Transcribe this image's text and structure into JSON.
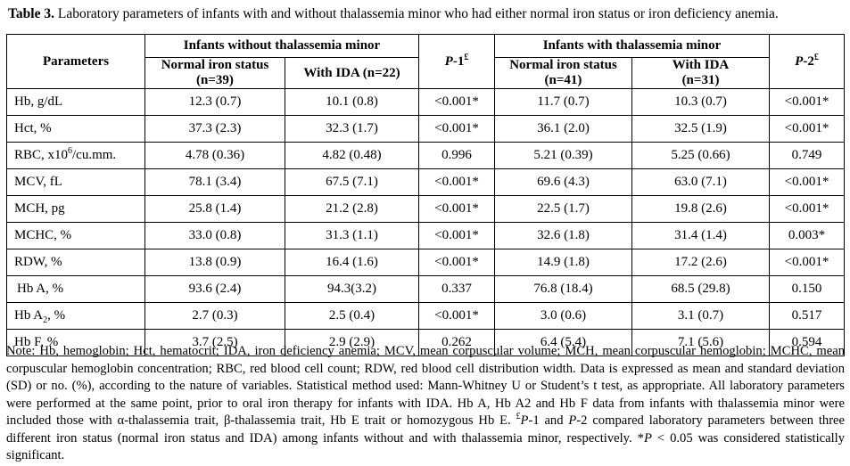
{
  "caption": {
    "label": "Table 3.",
    "text": "Laboratory parameters of infants with and without thalassemia minor who had either normal iron status or iron deficiency anemia."
  },
  "header": {
    "parameters": "Parameters",
    "group_without": "Infants without thalassemia minor",
    "group_with": "Infants with thalassemia minor",
    "p1_main": "P",
    "p1_rest": "-1",
    "p1_sup": "£",
    "p2_main": "P",
    "p2_rest": "-2",
    "p2_sup": "£",
    "without_normal": "Normal iron status",
    "without_normal_n": "(n=39)",
    "without_ida": "With IDA (n=22)",
    "with_normal": "Normal iron status",
    "with_normal_n": "(n=41)",
    "with_ida": "With IDA",
    "with_ida_n": "(n=31)"
  },
  "rows": [
    {
      "label": "Hb, g/dL",
      "c1": "12.3 (0.7)",
      "c2": "10.1 (0.8)",
      "p1": "<0.001*",
      "c3": "11.7 (0.7)",
      "c4": "10.3 (0.7)",
      "p2": "<0.001*"
    },
    {
      "label": "Hct, %",
      "c1": "37.3 (2.3)",
      "c2": "32.3 (1.7)",
      "p1": "<0.001*",
      "c3": "36.1 (2.0)",
      "c4": "32.5 (1.9)",
      "p2": "<0.001*"
    },
    {
      "label_pre": "RBC, x10",
      "label_sup": "6",
      "label_post": "/cu.mm.",
      "c1": "4.78 (0.36)",
      "c2": "4.82 (0.48)",
      "p1": "0.996",
      "c3": "5.21 (0.39)",
      "c4": "5.25 (0.66)",
      "p2": "0.749"
    },
    {
      "label": "MCV, fL",
      "c1": "78.1 (3.4)",
      "c2": "67.5 (7.1)",
      "p1": "<0.001*",
      "c3": "69.6 (4.3)",
      "c4": "63.0 (7.1)",
      "p2": "<0.001*"
    },
    {
      "label": "MCH, pg",
      "c1": "25.8 (1.4)",
      "c2": "21.2 (2.8)",
      "p1": "<0.001*",
      "c3": "22.5 (1.7)",
      "c4": "19.8 (2.6)",
      "p2": "<0.001*"
    },
    {
      "label": "MCHC, %",
      "c1": "33.0 (0.8)",
      "c2": "31.3 (1.1)",
      "p1": "<0.001*",
      "c3": "32.6 (1.8)",
      "c4": "31.4 (1.4)",
      "p2": "0.003*"
    },
    {
      "label": "RDW, %",
      "c1": "13.8 (0.9)",
      "c2": "16.4 (1.6)",
      "p1": "<0.001*",
      "c3": "14.9 (1.8)",
      "c4": "17.2 (2.6)",
      "p2": "<0.001*"
    },
    {
      "label": "Hb A, %",
      "c1": "93.6 (2.4)",
      "c2": "94.3(3.2)",
      "p1": "0.337",
      "c3": "76.8 (18.4)",
      "c4": "68.5 (29.8)",
      "p2": "0.150"
    },
    {
      "label_pre": "Hb A",
      "label_sub": "2",
      "label_post": ", %",
      "c1": "2.7 (0.3)",
      "c2": "2.5 (0.4)",
      "p1": "<0.001*",
      "c3": "3.0 (0.6)",
      "c4": "3.1 (0.7)",
      "p2": "0.517"
    },
    {
      "label": "Hb F, %",
      "c1": "3.7 (2.5)",
      "c2": "2.9 (2.9)",
      "p1": "0.262",
      "c3": "6.4 (5.4)",
      "c4": "7.1 (5.6)",
      "p2": "0.594"
    }
  ],
  "note": {
    "s1": "Note: Hb, hemoglobin; Hct, hematocrit; IDA, iron deficiency anemia; MCV, mean corpuscular volume; MCH, mean corpuscular hemoglobin; MCHC, mean corpuscular hemoglobin concentration; RBC, red blood cell count; RDW, red blood cell distribution width. Data is expressed as mean and standard deviation (SD) or no. (%), according to the nature of variables. Statistical method used: Mann-Whitney U or Student’s t test, as appropriate. All laboratory parameters were performed at the same point, prior to oral iron therapy for infants with IDA. Hb A, Hb A2 and Hb F data from infants with thalassemia minor were included those with α-thalassemia trait, β-thalassemia trait, Hb E trait or homozygous Hb E. ",
    "pound": "£",
    "p1_i": "P",
    "s2": "-1 and ",
    "p2_i": "P",
    "s3": "-2 compared laboratory parameters between three different iron status (normal iron status and IDA) among infants without and with thalassemia minor, respectively. *",
    "p3_i": "P",
    "s4": " < 0.05 was considered statistically significant."
  }
}
